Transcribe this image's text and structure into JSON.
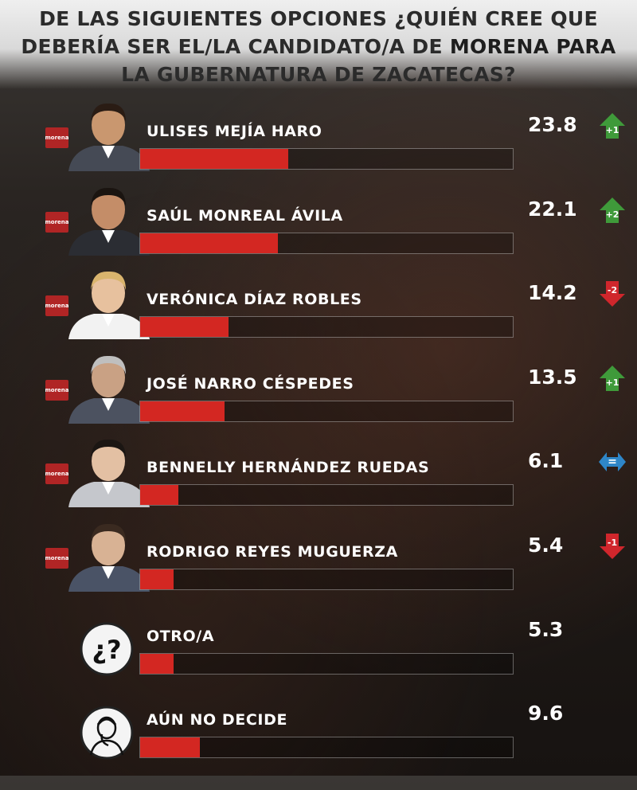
{
  "header": {
    "line1": "DE LAS SIGUIENTES OPCIONES ¿QUIÉN CREE QUE",
    "line2_pre": "DEBERÍA SER EL/LA CANDIDATO/A DE ",
    "line2_bold": "MORENA PARA",
    "line3": "LA GUBERNATURA DE ZACATECAS?"
  },
  "logo_text": "morena",
  "chart_data": {
    "type": "bar",
    "title": "DE LAS SIGUIENTES OPCIONES ¿QUIÉN CREE QUE DEBERÍA SER EL/LA CANDIDATO/A DE MORENA PARA LA GUBERNATURA DE ZACATECAS?",
    "categories": [
      "ULISES MEJÍA HARO",
      "SAÚL MONREAL ÁVILA",
      "VERÓNICA DÍAZ ROBLES",
      "JOSÉ NARRO CÉSPEDES",
      "BENNELLY HERNÁNDEZ RUEDAS",
      "RODRIGO REYES MUGUERZA",
      "OTRO/A",
      "AÚN NO DECIDE"
    ],
    "values": [
      23.8,
      22.1,
      14.2,
      13.5,
      6.1,
      5.4,
      5.3,
      9.6
    ],
    "value_labels": [
      "23.8",
      "22.1",
      "14.2",
      "13.5",
      "6.1",
      "5.4",
      "5.3",
      "9.6"
    ],
    "changes": [
      "+1",
      "+2",
      "-2",
      "+1",
      "=",
      "-1",
      null,
      null
    ],
    "change_dir": [
      "up",
      "up",
      "down",
      "up",
      "equal",
      "down",
      null,
      null
    ],
    "xlim": [
      0,
      60
    ],
    "colors": {
      "bar": "#d32722",
      "up": "#3f9a3a",
      "down": "#d0262c",
      "equal": "#2e86c8"
    }
  }
}
